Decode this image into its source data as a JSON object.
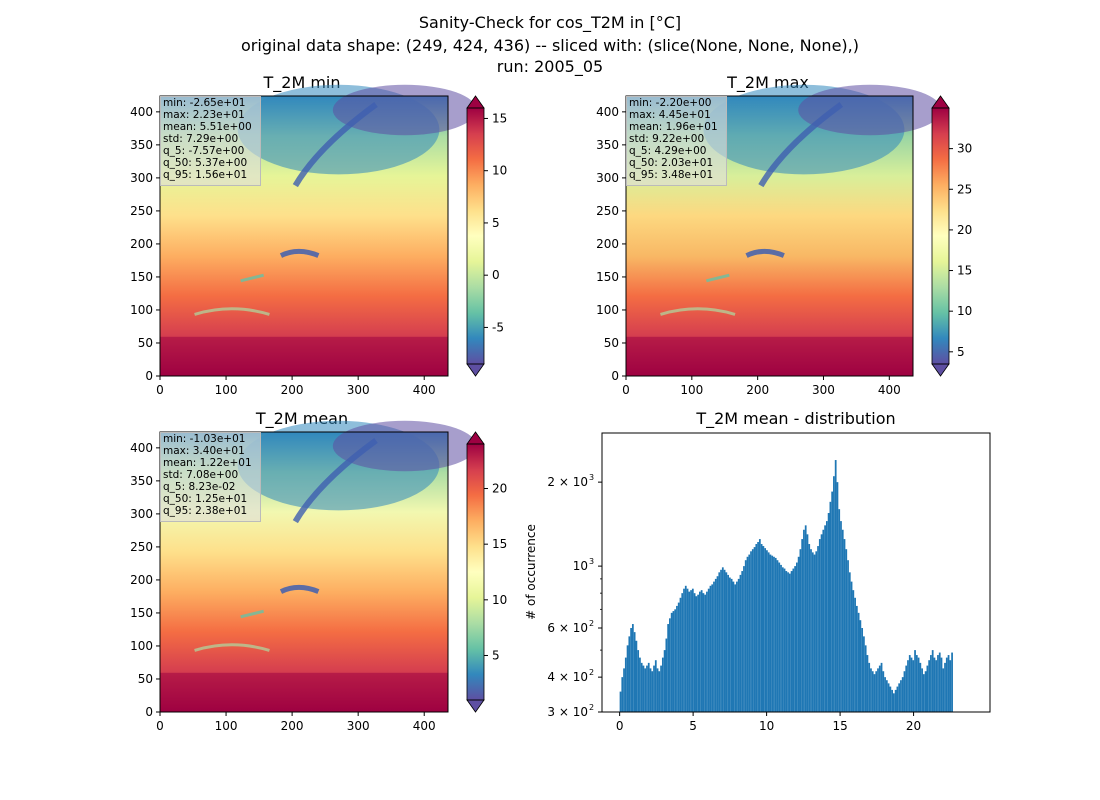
{
  "suptitle": {
    "line1": "Sanity-Check for cos_T2M in [°C]",
    "line2": "original data shape: (249, 424, 436) -- sliced with: (slice(None, None, None),)",
    "line3": "run: 2005_05"
  },
  "maps": [
    {
      "title": "T_2M min",
      "stats": [
        "min: -2.65e+01",
        "max: 2.23e+01",
        "mean: 5.51e+00",
        "std: 7.29e+00",
        "q_5: -7.57e+00",
        "q_50: 5.37e+00",
        "q_95: 1.56e+01"
      ],
      "colorbar": {
        "vmin": -8.5,
        "vmax": 16,
        "ticks": [
          "-5",
          "0",
          "5",
          "10",
          "15"
        ],
        "tick_values": [
          -5,
          0,
          5,
          10,
          15
        ]
      },
      "xticks": [
        "0",
        "100",
        "200",
        "300",
        "400"
      ],
      "yticks": [
        "0",
        "50",
        "100",
        "150",
        "200",
        "250",
        "300",
        "350",
        "400"
      ]
    },
    {
      "title": "T_2M max",
      "stats": [
        "min: -2.20e+00",
        "max: 4.45e+01",
        "mean: 1.96e+01",
        "std: 9.22e+00",
        "q_5: 4.29e+00",
        "q_50: 2.03e+01",
        "q_95: 3.48e+01"
      ],
      "colorbar": {
        "vmin": 3.5,
        "vmax": 35,
        "ticks": [
          "5",
          "10",
          "15",
          "20",
          "25",
          "30"
        ],
        "tick_values": [
          5,
          10,
          15,
          20,
          25,
          30
        ]
      },
      "xticks": [
        "0",
        "100",
        "200",
        "300",
        "400"
      ],
      "yticks": [
        "0",
        "50",
        "100",
        "150",
        "200",
        "250",
        "300",
        "350",
        "400"
      ]
    },
    {
      "title": "T_2M mean",
      "stats": [
        "min: -1.03e+01",
        "max: 3.40e+01",
        "mean: 1.22e+01",
        "std: 7.08e+00",
        "q_5: 8.23e-02",
        "q_50: 1.25e+01",
        "q_95: 2.38e+01"
      ],
      "colorbar": {
        "vmin": 1,
        "vmax": 24,
        "ticks": [
          "5",
          "10",
          "15",
          "20"
        ],
        "tick_values": [
          5,
          10,
          15,
          20
        ]
      },
      "xticks": [
        "0",
        "100",
        "200",
        "300",
        "400"
      ],
      "yticks": [
        "0",
        "50",
        "100",
        "150",
        "200",
        "250",
        "300",
        "350",
        "400"
      ]
    }
  ],
  "colors": {
    "spectral_r": [
      "#5e4fa2",
      "#3288bd",
      "#66c2a5",
      "#abdda4",
      "#e6f598",
      "#ffffbf",
      "#fee08b",
      "#fdae61",
      "#f46d43",
      "#d53e4f",
      "#9e0142"
    ],
    "hist_bar": "#1f77b4",
    "land_north": "#2c7bb6",
    "sea_south": "#9e0142"
  },
  "chart_data": {
    "type": "bar",
    "title": "T_2M mean - distribution",
    "xlabel": "",
    "ylabel": "# of occurrence",
    "yscale": "log",
    "xlim": [
      -1.2,
      25.2
    ],
    "ylim": [
      300,
      3000
    ],
    "xticks": [
      "0",
      "5",
      "10",
      "15",
      "20"
    ],
    "ytick_labels": [
      {
        "label": "3 × 10",
        "exp": "2",
        "value": 300
      },
      {
        "label": "4 × 10",
        "exp": "2",
        "value": 400
      },
      {
        "label": "6 × 10",
        "exp": "2",
        "value": 600
      },
      {
        "label": "10",
        "exp": "3",
        "value": 1000
      },
      {
        "label": "2 × 10",
        "exp": "3",
        "value": 2000
      }
    ],
    "bin_width": 0.12,
    "x_start": 0.0,
    "values": [
      355,
      400,
      430,
      470,
      520,
      560,
      600,
      620,
      580,
      540,
      500,
      470,
      450,
      440,
      430,
      440,
      450,
      430,
      420,
      440,
      460,
      430,
      420,
      440,
      470,
      500,
      550,
      620,
      650,
      680,
      690,
      700,
      720,
      740,
      770,
      800,
      830,
      850,
      830,
      810,
      820,
      830,
      800,
      780,
      790,
      810,
      820,
      800,
      790,
      810,
      830,
      850,
      860,
      880,
      900,
      920,
      950,
      970,
      990,
      970,
      950,
      930,
      910,
      900,
      880,
      860,
      880,
      900,
      930,
      960,
      1000,
      1050,
      1080,
      1100,
      1130,
      1150,
      1170,
      1200,
      1220,
      1250,
      1200,
      1180,
      1160,
      1140,
      1120,
      1100,
      1090,
      1080,
      1070,
      1050,
      1030,
      1010,
      990,
      980,
      960,
      950,
      940,
      960,
      980,
      1000,
      1030,
      1080,
      1150,
      1250,
      1350,
      1400,
      1300,
      1200,
      1150,
      1120,
      1100,
      1130,
      1180,
      1250,
      1300,
      1350,
      1400,
      1450,
      1550,
      1700,
      1850,
      2100,
      2400,
      2000,
      1600,
      1450,
      1350,
      1250,
      1150,
      1050,
      950,
      880,
      820,
      770,
      720,
      680,
      640,
      600,
      560,
      520,
      480,
      450,
      430,
      420,
      410,
      420,
      430,
      440,
      450,
      420,
      400,
      390,
      380,
      370,
      360,
      350,
      360,
      370,
      380,
      390,
      400,
      420,
      440,
      460,
      480,
      470,
      460,
      500,
      480,
      470,
      450,
      430,
      410,
      420,
      440,
      460,
      480,
      500,
      470,
      460,
      480,
      490,
      470,
      430,
      450,
      470,
      480,
      460,
      490
    ]
  }
}
